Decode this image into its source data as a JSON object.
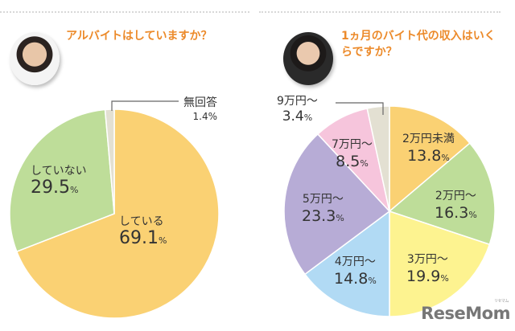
{
  "left": {
    "question": "アルバイトはしていますか？",
    "avatar": "female-student-photo"
  },
  "right": {
    "question_line1": "1ヵ月のバイト代の収入はいく",
    "question_line2": "らですか？",
    "avatar": "student-in-uniform-photo"
  },
  "logo": {
    "text": "ReseMom",
    "ruby": "リセマム"
  },
  "chart_data": [
    {
      "type": "pie",
      "title": "アルバイトはしていますか？",
      "categories": [
        "している",
        "していない",
        "無回答"
      ],
      "values": [
        69.1,
        29.5,
        1.4
      ],
      "unit": "%",
      "colors": [
        "#fad173",
        "#bedd99",
        "#e3e0d2"
      ],
      "start_angle": "12 o'clock, clockwise"
    },
    {
      "type": "pie",
      "title": "1ヵ月のバイト代の収入はいくらですか？",
      "categories": [
        "2万円未満",
        "2万円～",
        "3万円～",
        "4万円～",
        "5万円～",
        "7万円～",
        "9万円～"
      ],
      "values": [
        13.8,
        16.3,
        19.9,
        14.8,
        23.3,
        8.5,
        3.4
      ],
      "unit": "%",
      "colors": [
        "#fad173",
        "#bedd99",
        "#fdf390",
        "#b1daf4",
        "#b7acd6",
        "#f6c5dc",
        "#e3e0d2"
      ],
      "start_angle": "12 o'clock, clockwise"
    }
  ],
  "labels": {
    "l_yes": {
      "name": "している",
      "value": "69.1",
      "pct": "%"
    },
    "l_no": {
      "name": "していない",
      "value": "29.5",
      "pct": "%"
    },
    "l_na": {
      "name": "無回答",
      "value": "1.4%"
    },
    "r0": {
      "name": "2万円未満",
      "value": "13.8",
      "pct": "%"
    },
    "r1": {
      "name": "2万円～",
      "value": "16.3",
      "pct": "%"
    },
    "r2": {
      "name": "3万円～",
      "value": "19.9",
      "pct": "%"
    },
    "r3": {
      "name": "4万円～",
      "value": "14.8",
      "pct": "%"
    },
    "r4": {
      "name": "5万円～",
      "value": "23.3",
      "pct": "%"
    },
    "r5": {
      "name": "7万円～",
      "value": "8.5",
      "pct": "%"
    },
    "r6": {
      "name": "9万円～",
      "value": "3.4",
      "pct": "%"
    }
  }
}
